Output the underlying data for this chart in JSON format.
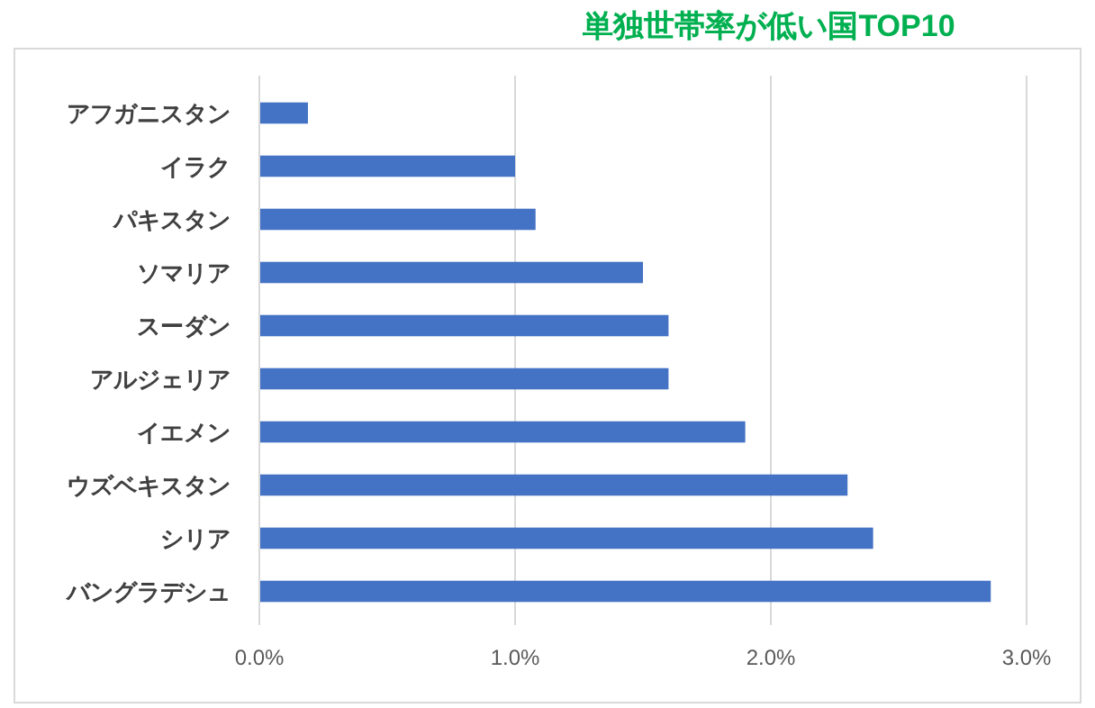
{
  "chart_data": {
    "type": "bar",
    "orientation": "horizontal",
    "title": "単独世帯率が低い国TOP10",
    "categories": [
      "アフガニスタン",
      "イラク",
      "パキスタン",
      "ソマリア",
      "スーダン",
      "アルジェリア",
      "イエメン",
      "ウズベキスタン",
      "シリア",
      "バングラデシュ"
    ],
    "values": [
      0.19,
      1.0,
      1.08,
      1.5,
      1.6,
      1.6,
      1.9,
      2.3,
      2.4,
      2.86
    ],
    "color": "#4472c4",
    "xlim": [
      0,
      3
    ],
    "xticks": [
      {
        "value": 0,
        "label": "0.0%"
      },
      {
        "value": 1,
        "label": "1.0%"
      },
      {
        "value": 2,
        "label": "2.0%"
      },
      {
        "value": 3,
        "label": "3.0%"
      }
    ],
    "grid": "x"
  }
}
